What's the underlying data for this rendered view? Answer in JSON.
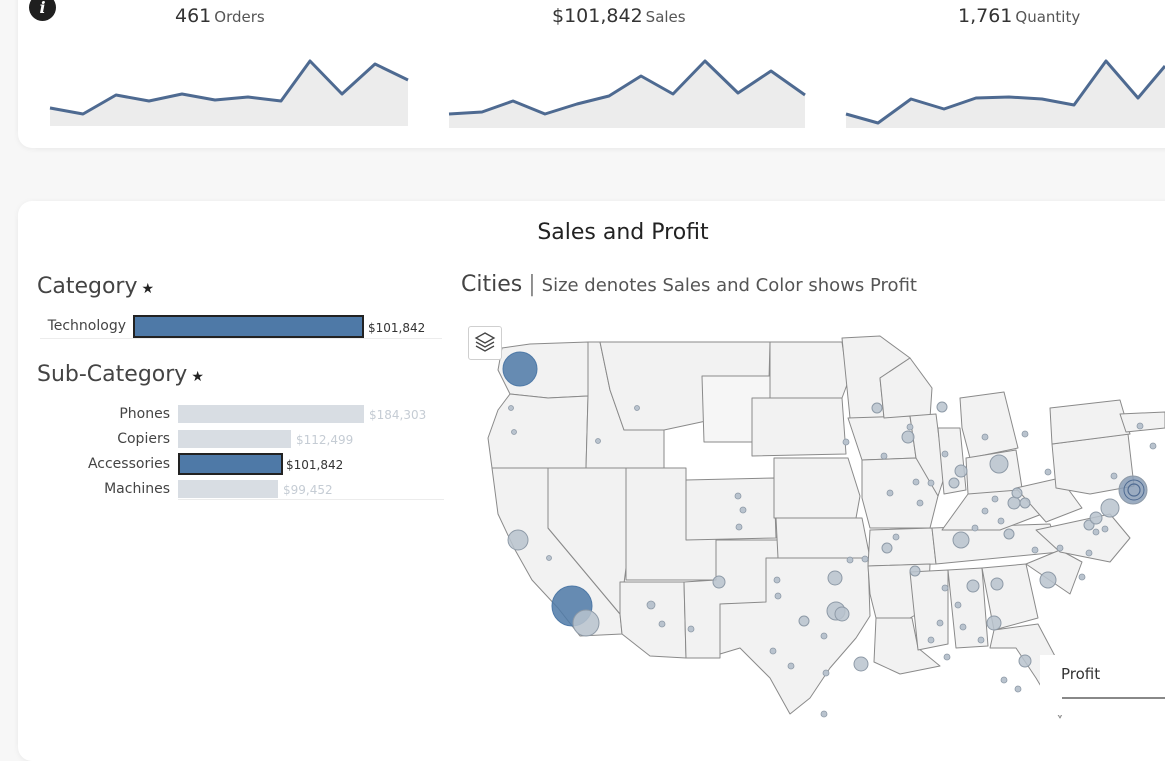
{
  "kpis": [
    {
      "value": "461",
      "label": "Orders"
    },
    {
      "value": "$101,842",
      "label": "Sales"
    },
    {
      "value": "1,761",
      "label": "Quantity"
    }
  ],
  "info_icon": "info-icon",
  "main": {
    "title": "Sales and Profit"
  },
  "category": {
    "title": "Category",
    "rows": [
      {
        "label": "Technology",
        "value": "$101,842",
        "amount": 101842,
        "selected": true
      }
    ]
  },
  "subcategory": {
    "title": "Sub-Category",
    "rows": [
      {
        "label": "Phones",
        "value": "$184,303",
        "amount": 184303,
        "selected": false
      },
      {
        "label": "Copiers",
        "value": "$112,499",
        "amount": 112499,
        "selected": false
      },
      {
        "label": "Accessories",
        "value": "$101,842",
        "amount": 101842,
        "selected": true
      },
      {
        "label": "Machines",
        "value": "$99,452",
        "amount": 99452,
        "selected": false
      }
    ]
  },
  "map": {
    "title": "Cities",
    "subtitle": "Size denotes Sales and Color shows Profit",
    "layers_icon": "layers-icon"
  },
  "legend": {
    "title": "Profit"
  },
  "colors": {
    "accent": "#4e79a7",
    "line": "#4e6a91",
    "area": "#e9e9e9",
    "dim_bar": "#d8dde3",
    "bubble": "#b9c3ce"
  }
}
